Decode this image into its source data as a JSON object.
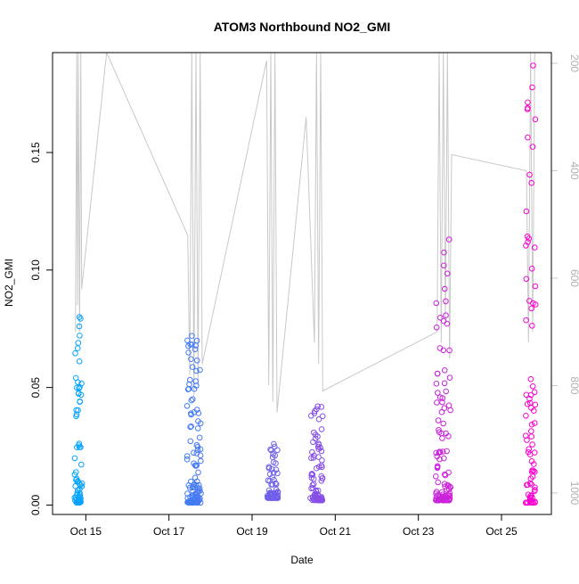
{
  "chart_data": {
    "type": "scatter",
    "title": "ATOM3 Northbound NO2_GMI",
    "xlabel": "Date",
    "ylabel": "NO2_GMI",
    "x_tick_labels": [
      "Oct 15",
      "Oct 17",
      "Oct 19",
      "Oct 21",
      "Oct 23",
      "Oct 25"
    ],
    "x_tick_days": [
      15,
      17,
      19,
      21,
      23,
      25
    ],
    "xlim": [
      14.2,
      26.2
    ],
    "ylim": [
      -0.004,
      0.1925
    ],
    "y_ticks": [
      0.0,
      0.05,
      0.1,
      0.15
    ],
    "y_tick_labels": [
      "0.00",
      "0.05",
      "0.10",
      "0.15"
    ],
    "y2_ticks": [
      200,
      400,
      600,
      800,
      1000
    ],
    "y2_tick_labels": [
      "200",
      "400",
      "600",
      "800",
      "1000"
    ],
    "y2lim": [
      1040,
      180
    ],
    "pressure_color": "#c8c8c8",
    "point_color_start": "#00a8ff",
    "point_color_end": "#ff00d0",
    "grid": false,
    "series": [
      {
        "kind": "pressure_line",
        "x": [
          14.75,
          14.78,
          14.8,
          14.82,
          14.85,
          14.88,
          14.9,
          15.5,
          17.45,
          17.5,
          17.55,
          17.6,
          17.65,
          17.7,
          17.75,
          17.8,
          19.35,
          19.4,
          19.45,
          19.5,
          19.55,
          19.6,
          20.3,
          20.5,
          20.55,
          20.6,
          20.65,
          20.7,
          23.45,
          23.5,
          23.55,
          23.6,
          23.65,
          23.7,
          23.75,
          23.8,
          25.6,
          25.65,
          25.7,
          25.75,
          25.8
        ],
        "y": [
          700,
          180,
          650,
          180,
          700,
          180,
          620,
          180,
          520,
          780,
          180,
          820,
          180,
          800,
          180,
          760,
          195,
          800,
          180,
          830,
          180,
          850,
          300,
          720,
          180,
          760,
          180,
          810,
          700,
          180,
          720,
          180,
          680,
          180,
          750,
          370,
          400,
          720,
          180,
          700,
          180
        ]
      },
      {
        "kind": "no2_points",
        "clusters": [
          {
            "center": 14.82,
            "spread": 0.09,
            "low": 0.001,
            "high": 0.08,
            "count": 70
          },
          {
            "center": 17.6,
            "spread": 0.17,
            "low": 0.001,
            "high": 0.072,
            "count": 110
          },
          {
            "center": 19.5,
            "spread": 0.13,
            "low": 0.003,
            "high": 0.026,
            "count": 70
          },
          {
            "center": 20.55,
            "spread": 0.15,
            "low": 0.002,
            "high": 0.042,
            "count": 80
          },
          {
            "center": 23.6,
            "spread": 0.18,
            "low": 0.002,
            "high": 0.113,
            "count": 110
          },
          {
            "center": 25.7,
            "spread": 0.12,
            "low": 0.001,
            "high": 0.187,
            "count": 80
          }
        ]
      }
    ]
  }
}
